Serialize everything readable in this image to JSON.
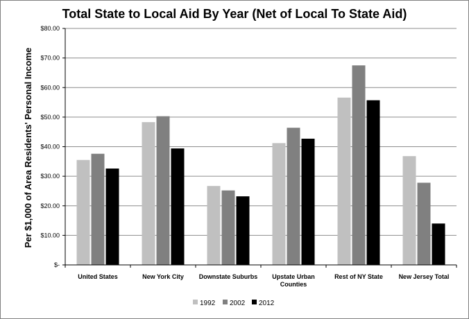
{
  "chart_data": {
    "type": "bar",
    "title": "Total State to Local Aid By Year (Net of Local To State Aid)",
    "xlabel": "",
    "ylabel": "Per $1,000 of Area Residents' Personal Income",
    "ylim": [
      0,
      80
    ],
    "yticks": [
      {
        "value": 0,
        "label": "$-"
      },
      {
        "value": 10,
        "label": "$10.00"
      },
      {
        "value": 20,
        "label": "$20.00"
      },
      {
        "value": 30,
        "label": "$30.00"
      },
      {
        "value": 40,
        "label": "$40.00"
      },
      {
        "value": 50,
        "label": "$50.00"
      },
      {
        "value": 60,
        "label": "$60.00"
      },
      {
        "value": 70,
        "label": "$70.00"
      },
      {
        "value": 80,
        "label": "$80.00"
      }
    ],
    "grid": true,
    "legend_position": "bottom",
    "categories": [
      [
        "United States"
      ],
      [
        "New York City"
      ],
      [
        "Downstate Suburbs"
      ],
      [
        "Upstate Urban",
        "Counties"
      ],
      [
        "Rest of NY State"
      ],
      [
        "New Jersey Total"
      ]
    ],
    "series": [
      {
        "name": "1992",
        "color": "#c0c0c0",
        "values": [
          35.5,
          48.3,
          26.7,
          41.2,
          56.6,
          36.8
        ]
      },
      {
        "name": "2002",
        "color": "#808080",
        "values": [
          37.6,
          50.3,
          25.2,
          46.4,
          67.5,
          27.8
        ]
      },
      {
        "name": "2012",
        "color": "#000000",
        "values": [
          32.6,
          39.4,
          23.2,
          42.7,
          55.7,
          14.0
        ]
      }
    ]
  }
}
